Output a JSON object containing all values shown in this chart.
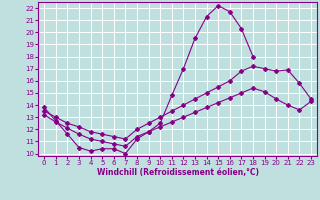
{
  "xlabel": "Windchill (Refroidissement éolien,°C)",
  "background_color": "#c0e0e0",
  "grid_color": "#ffffff",
  "line_color": "#880088",
  "xlim": [
    -0.5,
    23.5
  ],
  "ylim": [
    9.8,
    22.5
  ],
  "xticks": [
    0,
    1,
    2,
    3,
    4,
    5,
    6,
    7,
    8,
    9,
    10,
    11,
    12,
    13,
    14,
    15,
    16,
    17,
    18,
    19,
    20,
    21,
    22,
    23
  ],
  "yticks": [
    10,
    11,
    12,
    13,
    14,
    15,
    16,
    17,
    18,
    19,
    20,
    21,
    22
  ],
  "line1_x": [
    0,
    1,
    2,
    3,
    4,
    5,
    6,
    7,
    8,
    9,
    10,
    11,
    12,
    13,
    14,
    15,
    16,
    17,
    18,
    19
  ],
  "line1_y": [
    13.8,
    12.7,
    11.6,
    10.5,
    10.2,
    10.4,
    10.4,
    10.0,
    11.2,
    11.8,
    12.5,
    14.8,
    17.0,
    19.5,
    21.3,
    22.2,
    21.7,
    20.3,
    18.0,
    null
  ],
  "line2_x": [
    0,
    1,
    2,
    3,
    4,
    5,
    6,
    7,
    8,
    9,
    10,
    11,
    12,
    13,
    14,
    15,
    16,
    17,
    18,
    19,
    20,
    21,
    22,
    23
  ],
  "line2_y": [
    13.5,
    13.0,
    12.5,
    12.2,
    11.8,
    11.6,
    11.4,
    11.2,
    12.0,
    12.5,
    13.0,
    13.5,
    14.0,
    14.5,
    15.0,
    15.5,
    16.0,
    16.8,
    17.2,
    17.0,
    16.8,
    16.9,
    15.8,
    14.5
  ],
  "line3_x": [
    0,
    1,
    2,
    3,
    4,
    5,
    6,
    7,
    8,
    9,
    10,
    11,
    12,
    13,
    14,
    15,
    16,
    17,
    18,
    19,
    20,
    21,
    22,
    23
  ],
  "line3_y": [
    13.2,
    12.6,
    12.1,
    11.6,
    11.2,
    11.0,
    10.8,
    10.6,
    11.4,
    11.8,
    12.2,
    12.6,
    13.0,
    13.4,
    13.8,
    14.2,
    14.6,
    15.0,
    15.4,
    15.1,
    14.5,
    14.0,
    13.6,
    14.3
  ],
  "marker": "D",
  "markersize": 2,
  "linewidth": 0.8,
  "tick_fontsize": 5,
  "xlabel_fontsize": 5.5
}
